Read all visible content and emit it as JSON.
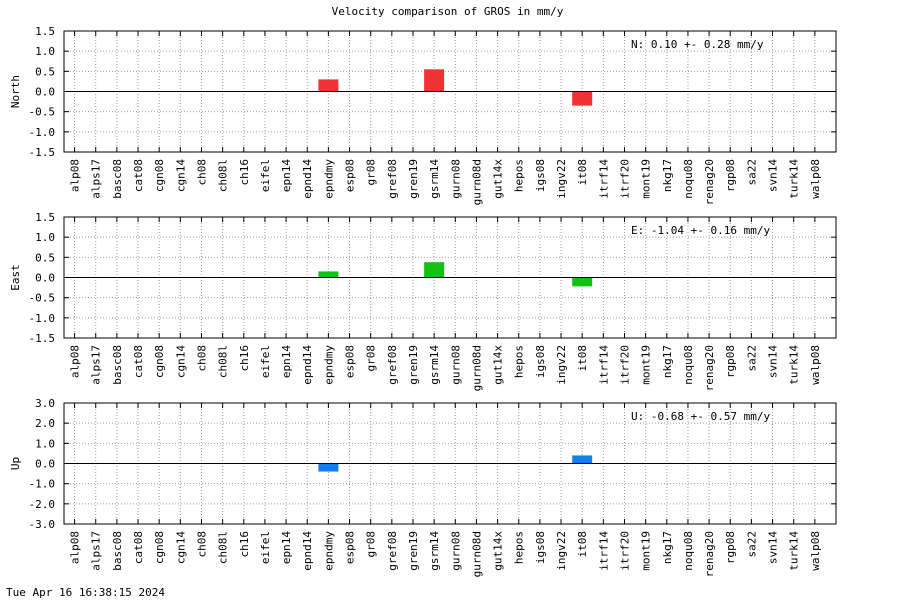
{
  "title": "Velocity comparison of GROS in mm/y",
  "timestamp": "Tue Apr 16 16:38:15 2024",
  "chart_data": [
    {
      "type": "bar",
      "ylabel": "North",
      "annotation": "N:   0.10 +-  0.28 mm/y",
      "color": "#f03232",
      "ylim": [
        -1.5,
        1.5
      ],
      "yticks": [
        -1.5,
        -1.0,
        -0.5,
        0.0,
        0.5,
        1.0,
        1.5
      ],
      "ytick_labels": [
        "-1.5",
        "-1.0",
        "-0.5",
        "0.0",
        "0.5",
        "1.0",
        "1.5"
      ],
      "categories": [
        "alp08",
        "alps17",
        "basc08",
        "cat08",
        "cgn08",
        "cgn14",
        "ch08",
        "ch08l",
        "ch16",
        "eifel",
        "epn14",
        "epnd14",
        "epndmy",
        "esp08",
        "gr08",
        "gref08",
        "gren19",
        "gsrm14",
        "gurn08",
        "gurn08d",
        "gut14x",
        "hepos",
        "igs08",
        "ingv22",
        "it08",
        "itrf14",
        "itrf20",
        "mont19",
        "nkg17",
        "noqu08",
        "renag20",
        "rgp08",
        "sa22",
        "svn14",
        "turk14",
        "walp08"
      ],
      "values": [
        null,
        null,
        null,
        null,
        null,
        null,
        null,
        null,
        null,
        null,
        null,
        null,
        0.3,
        null,
        null,
        null,
        null,
        0.55,
        null,
        null,
        null,
        null,
        null,
        null,
        -0.35,
        null,
        null,
        null,
        null,
        null,
        null,
        null,
        null,
        null,
        null,
        null
      ],
      "grid": true
    },
    {
      "type": "bar",
      "ylabel": "East",
      "annotation": "E:  -1.04 +-  0.16 mm/y",
      "color": "#14c014",
      "ylim": [
        -1.5,
        1.5
      ],
      "yticks": [
        -1.5,
        -1.0,
        -0.5,
        0.0,
        0.5,
        1.0,
        1.5
      ],
      "ytick_labels": [
        "-1.5",
        "-1.0",
        "-0.5",
        "0.0",
        "0.5",
        "1.0",
        "1.5"
      ],
      "categories": [
        "alp08",
        "alps17",
        "basc08",
        "cat08",
        "cgn08",
        "cgn14",
        "ch08",
        "ch08l",
        "ch16",
        "eifel",
        "epn14",
        "epnd14",
        "epndmy",
        "esp08",
        "gr08",
        "gref08",
        "gren19",
        "gsrm14",
        "gurn08",
        "gurn08d",
        "gut14x",
        "hepos",
        "igs08",
        "ingv22",
        "it08",
        "itrf14",
        "itrf20",
        "mont19",
        "nkg17",
        "noqu08",
        "renag20",
        "rgp08",
        "sa22",
        "svn14",
        "turk14",
        "walp08"
      ],
      "values": [
        null,
        null,
        null,
        null,
        null,
        null,
        null,
        null,
        null,
        null,
        null,
        null,
        0.15,
        null,
        null,
        null,
        null,
        0.38,
        null,
        null,
        null,
        null,
        null,
        null,
        -0.22,
        null,
        null,
        null,
        null,
        null,
        null,
        null,
        null,
        null,
        null,
        null
      ],
      "grid": true
    },
    {
      "type": "bar",
      "ylabel": "Up",
      "annotation": "U:  -0.68 +-  0.57 mm/y",
      "color": "#147ef0",
      "ylim": [
        -3.0,
        3.0
      ],
      "yticks": [
        -3.0,
        -2.0,
        -1.0,
        0.0,
        1.0,
        2.0,
        3.0
      ],
      "ytick_labels": [
        "-3.0",
        "-2.0",
        "-1.0",
        "0.0",
        "1.0",
        "2.0",
        "3.0"
      ],
      "categories": [
        "alp08",
        "alps17",
        "basc08",
        "cat08",
        "cgn08",
        "cgn14",
        "ch08",
        "ch08l",
        "ch16",
        "eifel",
        "epn14",
        "epnd14",
        "epndmy",
        "esp08",
        "gr08",
        "gref08",
        "gren19",
        "gsrm14",
        "gurn08",
        "gurn08d",
        "gut14x",
        "hepos",
        "igs08",
        "ingv22",
        "it08",
        "itrf14",
        "itrf20",
        "mont19",
        "nkg17",
        "noqu08",
        "renag20",
        "rgp08",
        "sa22",
        "svn14",
        "turk14",
        "walp08"
      ],
      "values": [
        null,
        null,
        null,
        null,
        null,
        null,
        null,
        null,
        null,
        null,
        null,
        null,
        -0.4,
        null,
        null,
        null,
        null,
        null,
        null,
        null,
        null,
        null,
        null,
        null,
        0.4,
        null,
        null,
        null,
        null,
        null,
        null,
        null,
        null,
        null,
        null,
        null
      ],
      "grid": true
    }
  ]
}
